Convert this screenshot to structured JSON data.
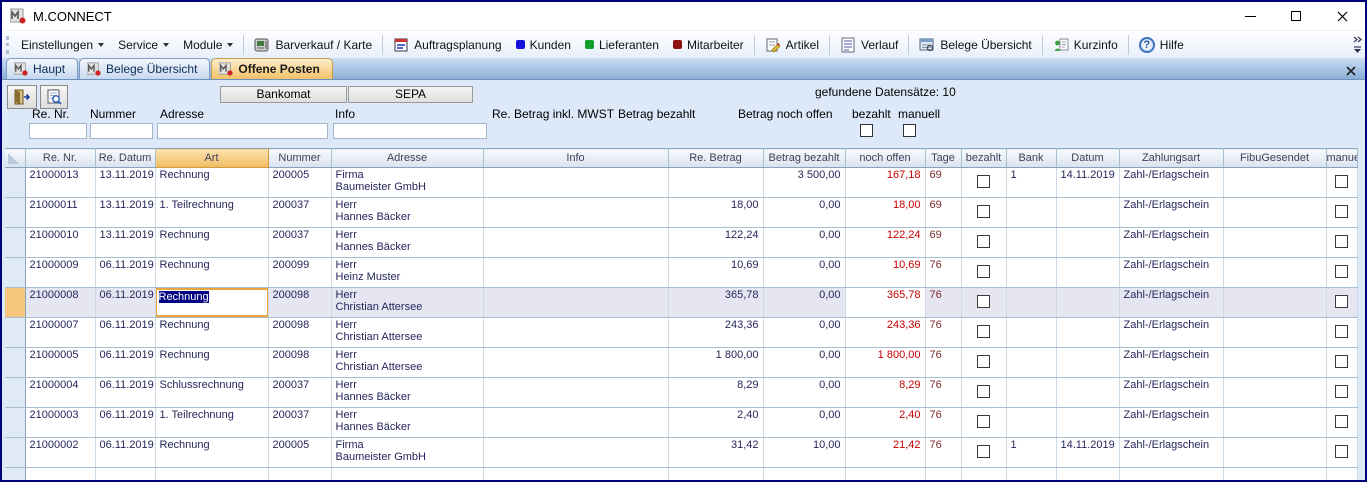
{
  "window": {
    "title": "M.CONNECT"
  },
  "toolbar": {
    "menus": [
      {
        "label": "Einstellungen"
      },
      {
        "label": "Service"
      },
      {
        "label": "Module"
      }
    ],
    "buttons": [
      {
        "label": "Barverkauf / Karte",
        "icon": "cash-register-icon"
      },
      {
        "label": "Auftragsplanung",
        "icon": "calendar-icon"
      },
      {
        "label": "Kunden",
        "icon": "blue-square-icon"
      },
      {
        "label": "Lieferanten",
        "icon": "green-square-icon"
      },
      {
        "label": "Mitarbeiter",
        "icon": "dark-red-square-icon"
      },
      {
        "label": "Artikel",
        "icon": "article-icon"
      },
      {
        "label": "Verlauf",
        "icon": "history-doc-icon"
      },
      {
        "label": "Belege Übersicht",
        "icon": "document-overview-icon"
      },
      {
        "label": "Kurzinfo",
        "icon": "quick-info-icon"
      },
      {
        "label": "Hilfe",
        "icon": "help-icon"
      }
    ]
  },
  "tabs": [
    {
      "label": "Haupt",
      "active": false
    },
    {
      "label": "Belege Übersicht",
      "active": false
    },
    {
      "label": "Offene Posten",
      "active": true
    }
  ],
  "filter": {
    "bankomat_label": "Bankomat",
    "sepa_label": "SEPA",
    "found_text": "gefundene Datensätze: 10",
    "labels": {
      "re_nr": "Re. Nr.",
      "nummer": "Nummer",
      "adresse": "Adresse",
      "info": "Info",
      "re_betrag": "Re. Betrag inkl. MWST",
      "betrag_bezahlt": "Betrag bezahlt",
      "betrag_offen": "Betrag noch offen",
      "bezahlt": "bezahlt",
      "manuell": "manuell"
    },
    "inputs": {
      "re_nr": "",
      "nummer": "",
      "adresse": "",
      "info": ""
    }
  },
  "icons": {
    "help_glyph": "?"
  },
  "colors": {
    "active_tab": "#f3c169",
    "selected_row": "#e6e6f2",
    "row_marker": "#f6c87e",
    "open_amount_red": "#c40000",
    "kunden_blue": "#1212d8",
    "lieferanten_green": "#12a02a",
    "mitarbeiter_dark_red": "#8f1010",
    "edit_border_orange": "#eaa43c"
  },
  "table": {
    "columns": [
      "Re. Nr.",
      "Re. Datum",
      "Art",
      "Nummer",
      "Adresse",
      "Info",
      "Re. Betrag",
      "Betrag bezahlt",
      "noch offen",
      "Tage",
      "bezahlt",
      "Bank",
      "Datum",
      "Zahlungsart",
      "FibuGesendet",
      "manuell"
    ],
    "rows": [
      {
        "re_nr": "21000013",
        "re_datum": "13.11.2019",
        "art": "Rechnung",
        "nummer": "200005",
        "adresse": [
          "Firma",
          "Baumeister GmbH"
        ],
        "info": "",
        "re_betrag": "",
        "betrag_bezahlt": "3 500,00",
        "noch_offen": "167,18",
        "tage": "69",
        "bezahlt": false,
        "bank": "1",
        "datum": "14.11.2019",
        "zahlungsart": "Zahl-/Erlagschein",
        "fibu_gesendet": "",
        "manuell": false,
        "selected": false,
        "editing_art": false
      },
      {
        "re_nr": "21000011",
        "re_datum": "13.11.2019",
        "art": "1. Teilrechnung",
        "nummer": "200037",
        "adresse": [
          "Herr",
          "Hannes Bäcker"
        ],
        "info": "",
        "re_betrag": "18,00",
        "betrag_bezahlt": "0,00",
        "noch_offen": "18,00",
        "tage": "69",
        "bezahlt": false,
        "bank": "",
        "datum": "",
        "zahlungsart": "Zahl-/Erlagschein",
        "fibu_gesendet": "",
        "manuell": false,
        "selected": false,
        "editing_art": false
      },
      {
        "re_nr": "21000010",
        "re_datum": "13.11.2019",
        "art": "Rechnung",
        "nummer": "200037",
        "adresse": [
          "Herr",
          "Hannes Bäcker"
        ],
        "info": "",
        "re_betrag": "122,24",
        "betrag_bezahlt": "0,00",
        "noch_offen": "122,24",
        "tage": "69",
        "bezahlt": false,
        "bank": "",
        "datum": "",
        "zahlungsart": "Zahl-/Erlagschein",
        "fibu_gesendet": "",
        "manuell": false,
        "selected": false,
        "editing_art": false
      },
      {
        "re_nr": "21000009",
        "re_datum": "06.11.2019",
        "art": "Rechnung",
        "nummer": "200099",
        "adresse": [
          "Herr",
          "Heinz Muster"
        ],
        "info": "",
        "re_betrag": "10,69",
        "betrag_bezahlt": "0,00",
        "noch_offen": "10,69",
        "tage": "76",
        "bezahlt": false,
        "bank": "",
        "datum": "",
        "zahlungsart": "Zahl-/Erlagschein",
        "fibu_gesendet": "",
        "manuell": false,
        "selected": false,
        "editing_art": false
      },
      {
        "re_nr": "21000008",
        "re_datum": "06.11.2019",
        "art": "Rechnung",
        "nummer": "200098",
        "adresse": [
          "Herr",
          "Christian Attersee"
        ],
        "info": "",
        "re_betrag": "365,78",
        "betrag_bezahlt": "0,00",
        "noch_offen": "365,78",
        "tage": "76",
        "bezahlt": false,
        "bank": "",
        "datum": "",
        "zahlungsart": "Zahl-/Erlagschein",
        "fibu_gesendet": "",
        "manuell": false,
        "selected": true,
        "editing_art": true
      },
      {
        "re_nr": "21000007",
        "re_datum": "06.11.2019",
        "art": "Rechnung",
        "nummer": "200098",
        "adresse": [
          "Herr",
          "Christian Attersee"
        ],
        "info": "",
        "re_betrag": "243,36",
        "betrag_bezahlt": "0,00",
        "noch_offen": "243,36",
        "tage": "76",
        "bezahlt": false,
        "bank": "",
        "datum": "",
        "zahlungsart": "Zahl-/Erlagschein",
        "fibu_gesendet": "",
        "manuell": false,
        "selected": false,
        "editing_art": false
      },
      {
        "re_nr": "21000005",
        "re_datum": "06.11.2019",
        "art": "Rechnung",
        "nummer": "200098",
        "adresse": [
          "Herr",
          "Christian Attersee"
        ],
        "info": "",
        "re_betrag": "1 800,00",
        "betrag_bezahlt": "0,00",
        "noch_offen": "1 800,00",
        "tage": "76",
        "bezahlt": false,
        "bank": "",
        "datum": "",
        "zahlungsart": "Zahl-/Erlagschein",
        "fibu_gesendet": "",
        "manuell": false,
        "selected": false,
        "editing_art": false
      },
      {
        "re_nr": "21000004",
        "re_datum": "06.11.2019",
        "art": "Schlussrechnung",
        "nummer": "200037",
        "adresse": [
          "Herr",
          "Hannes Bäcker"
        ],
        "info": "",
        "re_betrag": "8,29",
        "betrag_bezahlt": "0,00",
        "noch_offen": "8,29",
        "tage": "76",
        "bezahlt": false,
        "bank": "",
        "datum": "",
        "zahlungsart": "Zahl-/Erlagschein",
        "fibu_gesendet": "",
        "manuell": false,
        "selected": false,
        "editing_art": false
      },
      {
        "re_nr": "21000003",
        "re_datum": "06.11.2019",
        "art": "1. Teilrechnung",
        "nummer": "200037",
        "adresse": [
          "Herr",
          "Hannes Bäcker"
        ],
        "info": "",
        "re_betrag": "2,40",
        "betrag_bezahlt": "0,00",
        "noch_offen": "2,40",
        "tage": "76",
        "bezahlt": false,
        "bank": "",
        "datum": "",
        "zahlungsart": "Zahl-/Erlagschein",
        "fibu_gesendet": "",
        "manuell": false,
        "selected": false,
        "editing_art": false
      },
      {
        "re_nr": "21000002",
        "re_datum": "06.11.2019",
        "art": "Rechnung",
        "nummer": "200005",
        "adresse": [
          "Firma",
          "Baumeister GmbH"
        ],
        "info": "",
        "re_betrag": "31,42",
        "betrag_bezahlt": "10,00",
        "noch_offen": "21,42",
        "tage": "76",
        "bezahlt": false,
        "bank": "1",
        "datum": "14.11.2019",
        "zahlungsart": "Zahl-/Erlagschein",
        "fibu_gesendet": "",
        "manuell": false,
        "selected": false,
        "editing_art": false
      }
    ]
  }
}
